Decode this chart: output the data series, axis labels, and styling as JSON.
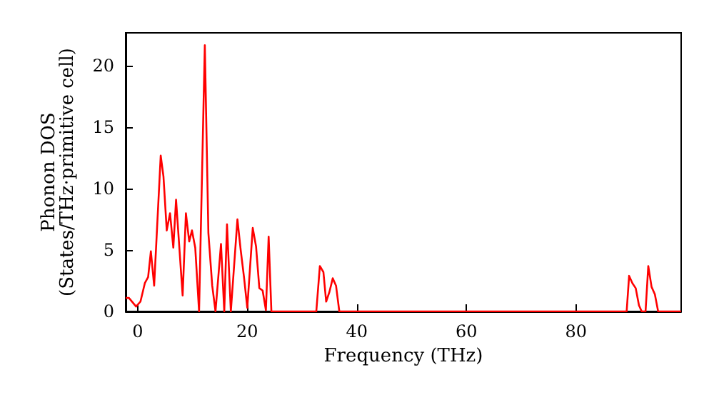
{
  "chart_data": {
    "type": "line",
    "xlabel": "Frequency (THz)",
    "ylabel": "Phonon DOS\n(States/THz·primitive cell)",
    "xlim": [
      -2.2,
      99.2
    ],
    "ylim": [
      0,
      22.7
    ],
    "xticks": [
      0,
      20,
      40,
      60,
      80
    ],
    "yticks": [
      0,
      5,
      10,
      15,
      20
    ],
    "grid": false,
    "marker": "none",
    "line_style": "solid",
    "series": [
      {
        "color": "#ff0000",
        "x": [
          -2.2,
          -1.6,
          -0.3,
          0.5,
          1.3,
          1.9,
          2.4,
          3.0,
          4.2,
          4.7,
          5.3,
          5.9,
          6.5,
          7.0,
          8.2,
          8.8,
          9.4,
          9.9,
          10.5,
          11.2,
          12.25,
          12.9,
          13.6,
          14.2,
          15.2,
          15.8,
          16.3,
          17.0,
          18.2,
          18.8,
          19.4,
          20.0,
          21.0,
          21.6,
          22.2,
          22.8,
          23.4,
          23.9,
          24.4,
          32.6,
          33.25,
          33.9,
          34.4,
          35.0,
          35.6,
          36.2,
          36.8,
          89.25,
          89.7,
          90.3,
          90.9,
          91.5,
          92.0,
          92.7,
          93.2,
          93.8,
          94.4,
          95.0,
          99.2
        ],
        "values": [
          1.1,
          1.1,
          0.4,
          0.8,
          2.3,
          2.8,
          4.9,
          2.1,
          12.7,
          11.0,
          6.6,
          8.0,
          5.2,
          9.1,
          1.3,
          8.0,
          5.7,
          6.6,
          5.2,
          0,
          21.7,
          6.4,
          2.1,
          0,
          5.5,
          0,
          7.1,
          0,
          7.5,
          5.0,
          2.8,
          0.3,
          6.8,
          5.3,
          1.9,
          1.7,
          0.1,
          6.1,
          0,
          0,
          3.7,
          3.2,
          0.8,
          1.6,
          2.7,
          2.1,
          0,
          0,
          2.9,
          2.3,
          1.9,
          0.5,
          0,
          0,
          3.7,
          2.0,
          1.4,
          0,
          0
        ]
      }
    ]
  }
}
